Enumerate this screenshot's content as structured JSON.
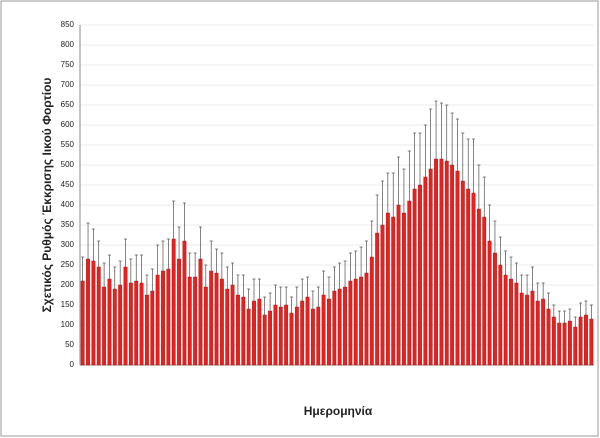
{
  "chart_data": {
    "type": "bar",
    "y_label": "Σχετικός Ρυθμός Έκκρισης Ιικού Φορτίου",
    "x_label": "Ημερομηνία",
    "categories": [
      null,
      null,
      null,
      null,
      null,
      null,
      null,
      null,
      null,
      null,
      null,
      null,
      null,
      null,
      null,
      null,
      null,
      null,
      null,
      null,
      null,
      null,
      null,
      null,
      null,
      null,
      null,
      null,
      null,
      null,
      null,
      null,
      null,
      null,
      null,
      null,
      null,
      null,
      null,
      null,
      null,
      null,
      null,
      null,
      null,
      null,
      null,
      null,
      null,
      null,
      null,
      null,
      null,
      null,
      null,
      null,
      null,
      null,
      null,
      null,
      null,
      null,
      null,
      null,
      null,
      null,
      null,
      null,
      null,
      null,
      null,
      null,
      null,
      null,
      null,
      null,
      null,
      null,
      null,
      null,
      null,
      null,
      null,
      null,
      null,
      null,
      null,
      null,
      null,
      null,
      null,
      null,
      null,
      null,
      null,
      null
    ],
    "values": [
      210,
      265,
      260,
      245,
      195,
      215,
      190,
      200,
      245,
      205,
      210,
      205,
      175,
      185,
      225,
      235,
      240,
      315,
      265,
      310,
      220,
      220,
      265,
      195,
      235,
      230,
      215,
      190,
      200,
      175,
      170,
      140,
      160,
      165,
      125,
      135,
      150,
      145,
      150,
      130,
      145,
      160,
      170,
      140,
      145,
      175,
      165,
      185,
      190,
      195,
      210,
      215,
      220,
      230,
      270,
      330,
      350,
      380,
      370,
      400,
      380,
      410,
      440,
      450,
      470,
      490,
      515,
      515,
      510,
      500,
      485,
      460,
      440,
      430,
      390,
      370,
      310,
      280,
      250,
      225,
      215,
      205,
      180,
      175,
      185,
      160,
      165,
      140,
      120,
      105,
      105,
      110,
      95,
      120,
      125,
      115
    ],
    "errors": [
      60,
      90,
      80,
      65,
      60,
      60,
      55,
      60,
      70,
      60,
      65,
      70,
      50,
      55,
      75,
      75,
      75,
      95,
      80,
      95,
      60,
      60,
      80,
      55,
      75,
      60,
      65,
      55,
      55,
      50,
      55,
      50,
      55,
      50,
      45,
      45,
      50,
      50,
      45,
      40,
      50,
      55,
      50,
      45,
      50,
      60,
      55,
      60,
      65,
      65,
      70,
      70,
      75,
      80,
      90,
      95,
      110,
      100,
      110,
      120,
      110,
      125,
      140,
      130,
      130,
      150,
      145,
      140,
      140,
      130,
      130,
      120,
      125,
      135,
      110,
      100,
      90,
      80,
      70,
      60,
      55,
      50,
      45,
      50,
      60,
      45,
      40,
      40,
      30,
      30,
      30,
      30,
      25,
      35,
      35,
      35
    ],
    "color": "#e8201e",
    "ylim": [
      0,
      850
    ],
    "yticks": [
      0,
      50,
      100,
      150,
      200,
      250,
      300,
      350,
      400,
      450,
      500,
      550,
      600,
      650,
      700,
      750,
      800,
      850
    ],
    "grid": true
  }
}
